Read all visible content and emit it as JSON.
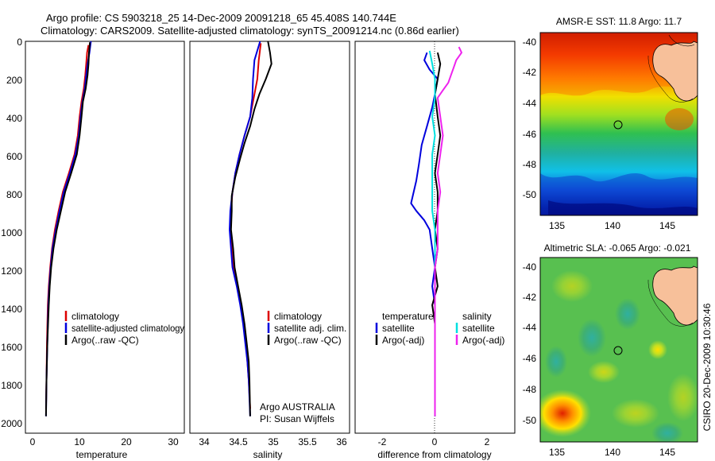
{
  "title_line1": "Argo profile: CS 5903218_25 14-Dec-2009 20091218_65 45.408S 140.744E",
  "title_line2": "Climatology: CARS2009. Satellite-adjusted climatology: synTS_20091214.nc (0.86d earlier)",
  "side_text": "CSIRO 20-Dec-2009 10:30:46",
  "chart_data": [
    {
      "id": "temperature",
      "type": "line",
      "xlabel": "temperature",
      "ylabel": "",
      "xlim": [
        -2,
        32
      ],
      "ylim": [
        2080,
        0
      ],
      "xticks": [
        "0",
        "10",
        "20",
        "30"
      ],
      "xtick_values": [
        0,
        10,
        20,
        30
      ],
      "yticks": [
        "0",
        "200",
        "400",
        "600",
        "800",
        "1000",
        "1200",
        "1400",
        "1600",
        "1800",
        "2000"
      ],
      "ytick_values": [
        0,
        200,
        400,
        600,
        800,
        1000,
        1200,
        1400,
        1600,
        1800,
        2000
      ],
      "legend": [
        "climatology",
        "satellite-adjusted climatology",
        "Argo(..raw -QC)"
      ],
      "series": [
        {
          "name": "climatology",
          "color": "#dd0000",
          "points": [
            [
              11.5,
              20
            ],
            [
              11.2,
              60
            ],
            [
              11.0,
              120
            ],
            [
              10.8,
              180
            ],
            [
              10.5,
              250
            ],
            [
              10.0,
              320
            ],
            [
              9.6,
              400
            ],
            [
              9.2,
              500
            ],
            [
              8.5,
              600
            ],
            [
              7.3,
              700
            ],
            [
              6.0,
              800
            ],
            [
              5.1,
              900
            ],
            [
              4.3,
              1000
            ],
            [
              3.7,
              1100
            ],
            [
              3.3,
              1200
            ],
            [
              3.0,
              1300
            ],
            [
              2.8,
              1400
            ],
            [
              2.6,
              1600
            ],
            [
              2.5,
              1800
            ],
            [
              2.4,
              1950
            ]
          ]
        },
        {
          "name": "satellite-adjusted climatology",
          "color": "#0000dd",
          "points": [
            [
              12.0,
              0
            ],
            [
              11.7,
              60
            ],
            [
              11.3,
              120
            ],
            [
              11.0,
              180
            ],
            [
              10.7,
              250
            ],
            [
              10.2,
              320
            ],
            [
              9.8,
              400
            ],
            [
              9.4,
              500
            ],
            [
              8.7,
              600
            ],
            [
              7.5,
              700
            ],
            [
              6.2,
              800
            ],
            [
              5.3,
              900
            ],
            [
              4.5,
              1000
            ],
            [
              3.8,
              1100
            ],
            [
              3.4,
              1200
            ],
            [
              3.1,
              1300
            ],
            [
              2.9,
              1400
            ],
            [
              2.7,
              1600
            ],
            [
              2.5,
              1800
            ],
            [
              2.4,
              1990
            ]
          ]
        },
        {
          "name": "Argo(..raw -QC)",
          "color": "#000000",
          "points": [
            [
              11.8,
              5
            ],
            [
              11.6,
              60
            ],
            [
              11.5,
              120
            ],
            [
              11.3,
              180
            ],
            [
              10.9,
              250
            ],
            [
              10.3,
              320
            ],
            [
              10.0,
              400
            ],
            [
              9.6,
              500
            ],
            [
              9.0,
              600
            ],
            [
              7.8,
              700
            ],
            [
              6.5,
              800
            ],
            [
              5.6,
              900
            ],
            [
              4.7,
              1000
            ],
            [
              4.0,
              1100
            ],
            [
              3.5,
              1200
            ],
            [
              3.2,
              1300
            ],
            [
              3.0,
              1400
            ],
            [
              2.7,
              1600
            ],
            [
              2.5,
              1800
            ],
            [
              2.4,
              1990
            ]
          ]
        }
      ]
    },
    {
      "id": "salinity",
      "type": "line",
      "xlabel": "salinity",
      "ylabel": "",
      "xlim": [
        33.85,
        36.1
      ],
      "ylim": [
        2080,
        0
      ],
      "xticks": [
        "34",
        "34.5",
        "35",
        "35.5",
        "36"
      ],
      "xtick_values": [
        34,
        34.5,
        35,
        35.5,
        36
      ],
      "legend": [
        "climatology",
        "satellite adj. clim.",
        "Argo(..raw -QC)"
      ],
      "annotations": [
        "Argo AUSTRALIA",
        "PI: Susan Wijffels"
      ],
      "series": [
        {
          "name": "climatology",
          "color": "#dd0000",
          "points": [
            [
              34.85,
              10
            ],
            [
              34.82,
              100
            ],
            [
              34.8,
              200
            ],
            [
              34.75,
              300
            ],
            [
              34.7,
              400
            ],
            [
              34.62,
              500
            ],
            [
              34.55,
              600
            ],
            [
              34.49,
              700
            ],
            [
              34.45,
              800
            ],
            [
              34.43,
              900
            ],
            [
              34.42,
              1000
            ],
            [
              34.44,
              1100
            ],
            [
              34.46,
              1200
            ],
            [
              34.52,
              1300
            ],
            [
              34.57,
              1400
            ],
            [
              34.61,
              1500
            ],
            [
              34.64,
              1600
            ],
            [
              34.66,
              1700
            ],
            [
              34.68,
              1800
            ],
            [
              34.7,
              1950
            ]
          ]
        },
        {
          "name": "satellite adj. clim.",
          "color": "#0000dd",
          "points": [
            [
              34.84,
              0
            ],
            [
              34.76,
              100
            ],
            [
              34.74,
              200
            ],
            [
              34.73,
              300
            ],
            [
              34.7,
              400
            ],
            [
              34.62,
              500
            ],
            [
              34.55,
              600
            ],
            [
              34.49,
              700
            ],
            [
              34.45,
              800
            ],
            [
              34.42,
              900
            ],
            [
              34.41,
              1000
            ],
            [
              34.43,
              1100
            ],
            [
              34.45,
              1200
            ],
            [
              34.51,
              1300
            ],
            [
              34.56,
              1400
            ],
            [
              34.6,
              1500
            ],
            [
              34.63,
              1600
            ],
            [
              34.66,
              1700
            ],
            [
              34.68,
              1800
            ],
            [
              34.7,
              1990
            ]
          ]
        },
        {
          "name": "Argo(..raw -QC)",
          "color": "#000000",
          "points": [
            [
              34.95,
              0
            ],
            [
              34.98,
              60
            ],
            [
              35.0,
              120
            ],
            [
              34.92,
              200
            ],
            [
              34.83,
              280
            ],
            [
              34.76,
              360
            ],
            [
              34.7,
              450
            ],
            [
              34.62,
              540
            ],
            [
              34.56,
              620
            ],
            [
              34.49,
              720
            ],
            [
              34.44,
              820
            ],
            [
              34.44,
              900
            ],
            [
              34.43,
              1000
            ],
            [
              34.46,
              1100
            ],
            [
              34.48,
              1200
            ],
            [
              34.53,
              1300
            ],
            [
              34.58,
              1400
            ],
            [
              34.62,
              1500
            ],
            [
              34.65,
              1600
            ],
            [
              34.68,
              1700
            ],
            [
              34.69,
              1800
            ],
            [
              34.7,
              1990
            ]
          ]
        }
      ]
    },
    {
      "id": "difference",
      "type": "line",
      "xlabel": "difference from climatology",
      "ylabel": "",
      "xlim": [
        -3,
        3
      ],
      "ylim": [
        2080,
        0
      ],
      "xticks": [
        "-2",
        "0",
        "2"
      ],
      "xtick_values": [
        -2,
        0,
        2
      ],
      "legend_headers": [
        "temperature",
        "salinity"
      ],
      "legend": [
        "satellite",
        "Argo(-adj)",
        "satellite",
        "Argo(-adj)"
      ],
      "series": [
        {
          "name": "temperature satellite",
          "color": "#0000dd",
          "points": [
            [
              -0.3,
              60
            ],
            [
              -0.4,
              100
            ],
            [
              -0.2,
              150
            ],
            [
              0.1,
              200
            ],
            [
              0.0,
              280
            ],
            [
              -0.1,
              350
            ],
            [
              -0.2,
              400
            ],
            [
              -0.3,
              450
            ],
            [
              -0.5,
              550
            ],
            [
              -0.6,
              650
            ],
            [
              -0.7,
              740
            ],
            [
              -0.8,
              800
            ],
            [
              -0.9,
              860
            ],
            [
              -0.7,
              900
            ],
            [
              -0.4,
              950
            ],
            [
              -0.2,
              1000
            ],
            [
              -0.1,
              1100
            ],
            [
              0.0,
              1200
            ],
            [
              -0.1,
              1300
            ],
            [
              0.0,
              1400
            ],
            [
              0.0,
              1600
            ],
            [
              0.0,
              1800
            ],
            [
              0.0,
              1990
            ]
          ]
        },
        {
          "name": "temperature Argo(-adj)",
          "color": "#000000",
          "points": [
            [
              0.1,
              60
            ],
            [
              0.2,
              120
            ],
            [
              0.1,
              200
            ],
            [
              0.0,
              280
            ],
            [
              0.1,
              400
            ],
            [
              0.2,
              500
            ],
            [
              0.1,
              600
            ],
            [
              0.0,
              700
            ],
            [
              0.1,
              800
            ],
            [
              0.1,
              900
            ],
            [
              0.0,
              1000
            ],
            [
              0.1,
              1100
            ],
            [
              0.0,
              1200
            ],
            [
              0.1,
              1300
            ],
            [
              -0.1,
              1400
            ],
            [
              0.0,
              1500
            ],
            [
              0.0,
              1700
            ],
            [
              0.0,
              1990
            ]
          ]
        },
        {
          "name": "salinity satellite",
          "color": "#00e0e0",
          "points": [
            [
              -0.2,
              50
            ],
            [
              -0.1,
              120
            ],
            [
              0.0,
              200
            ],
            [
              0.0,
              300
            ],
            [
              -0.1,
              400
            ],
            [
              0.0,
              500
            ],
            [
              -0.1,
              600
            ],
            [
              -0.1,
              700
            ],
            [
              -0.1,
              800
            ],
            [
              -0.1,
              900
            ],
            [
              0.0,
              1000
            ],
            [
              0.0,
              1100
            ],
            [
              0.0,
              1200
            ],
            [
              0.0,
              1400
            ],
            [
              0.0,
              1600
            ],
            [
              0.0,
              1800
            ],
            [
              0.0,
              1990
            ]
          ]
        },
        {
          "name": "salinity Argo(-adj)",
          "color": "#ee22ee",
          "points": [
            [
              0.9,
              30
            ],
            [
              1.0,
              60
            ],
            [
              0.8,
              100
            ],
            [
              0.7,
              140
            ],
            [
              0.6,
              180
            ],
            [
              0.5,
              220
            ],
            [
              0.3,
              260
            ],
            [
              0.1,
              300
            ],
            [
              0.2,
              400
            ],
            [
              0.3,
              500
            ],
            [
              0.2,
              600
            ],
            [
              0.1,
              700
            ],
            [
              0.2,
              800
            ],
            [
              0.1,
              900
            ],
            [
              0.1,
              1000
            ],
            [
              0.1,
              1100
            ],
            [
              0.0,
              1200
            ],
            [
              0.0,
              1400
            ],
            [
              0.0,
              1600
            ],
            [
              0.0,
              1800
            ],
            [
              0.0,
              1990
            ]
          ]
        }
      ]
    },
    {
      "id": "sst_map",
      "type": "heatmap",
      "title": "AMSR-E SST: 11.8 Argo: 11.7",
      "xticks": [
        "135",
        "140",
        "145"
      ],
      "xtick_values": [
        135,
        140,
        145
      ],
      "yticks": [
        "-40",
        "-42",
        "-44",
        "-46",
        "-48",
        "-50"
      ],
      "ytick_values": [
        -40,
        -42,
        -44,
        -46,
        -48,
        -50
      ],
      "xlim": [
        133.8,
        148
      ],
      "ylim": [
        -51.6,
        -39.5
      ],
      "marker": [
        140.744,
        -45.408
      ]
    },
    {
      "id": "sla_map",
      "type": "heatmap",
      "title": "Altimetric SLA: -0.065 Argo: -0.021",
      "xticks": [
        "135",
        "140",
        "145"
      ],
      "xtick_values": [
        135,
        140,
        145
      ],
      "yticks": [
        "-40",
        "-42",
        "-44",
        "-46",
        "-48",
        "-50"
      ],
      "ytick_values": [
        -40,
        -42,
        -44,
        -46,
        -48,
        -50
      ],
      "xlim": [
        133.8,
        148
      ],
      "ylim": [
        -51.2,
        -39.5
      ],
      "marker": [
        140.744,
        -45.408
      ]
    }
  ]
}
